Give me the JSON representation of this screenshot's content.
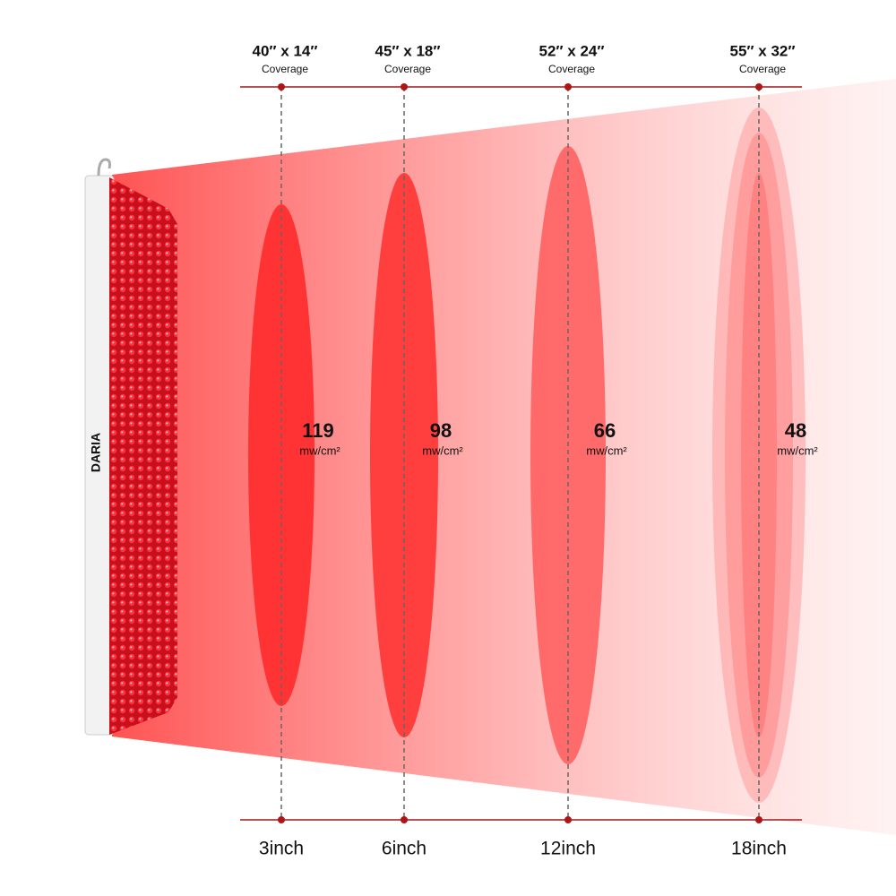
{
  "brand": "DARIA",
  "stations": [
    {
      "coverage": "40″ x 14″",
      "coverage_label": "Coverage",
      "irradiance": "119",
      "unit": "mw/cm²",
      "distance": "3inch"
    },
    {
      "coverage": "45″ x 18″",
      "coverage_label": "Coverage",
      "irradiance": "98",
      "unit": "mw/cm²",
      "distance": "6inch"
    },
    {
      "coverage": "52″ x 24″",
      "coverage_label": "Coverage",
      "irradiance": "66",
      "unit": "mw/cm²",
      "distance": "12inch"
    },
    {
      "coverage": "55″ x 32″",
      "coverage_label": "Coverage",
      "irradiance": "48",
      "unit": "mw/cm²",
      "distance": "18inch"
    }
  ]
}
